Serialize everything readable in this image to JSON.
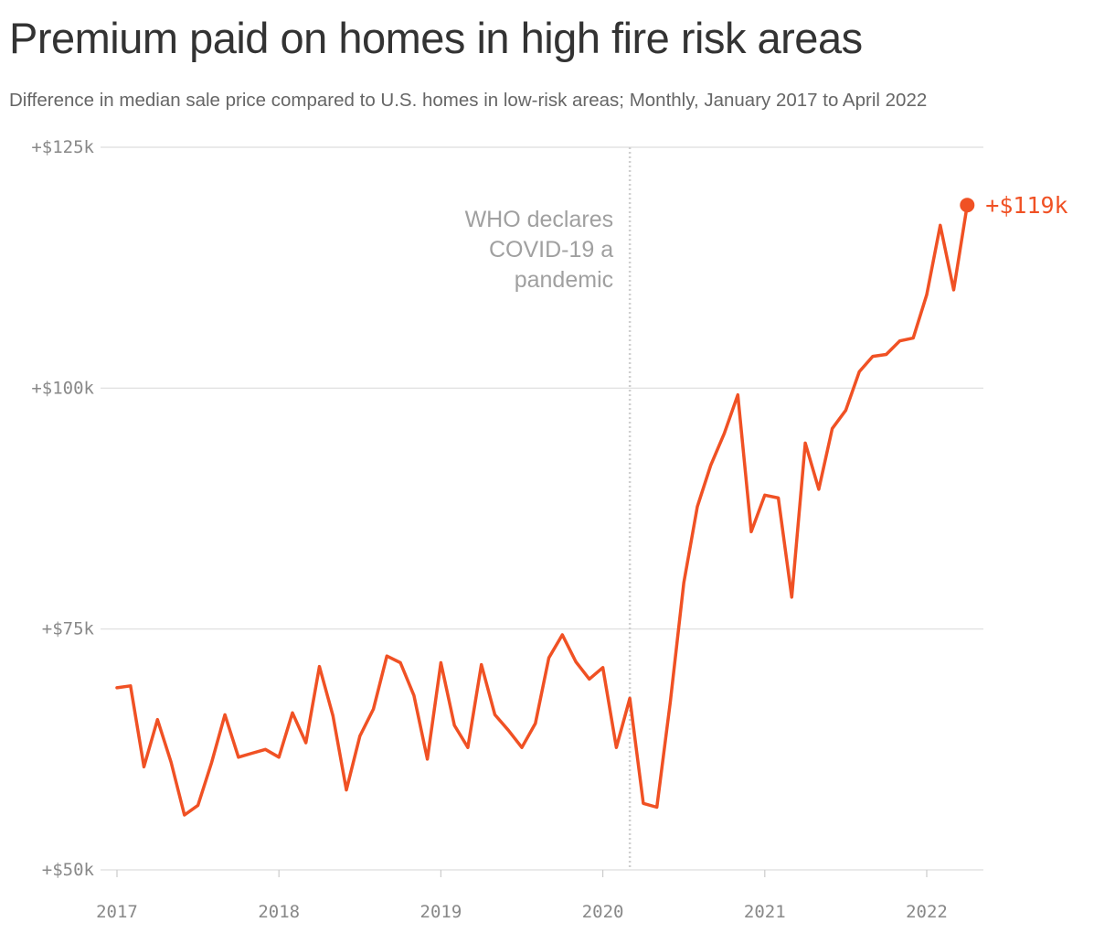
{
  "title": "Premium paid on homes in high fire risk areas",
  "subtitle": "Difference in median sale price compared to U.S. homes in low-risk areas; Monthly, January 2017 to April 2022",
  "colors": {
    "line": "#f05124",
    "grid": "#dddddd",
    "annotation": "#a0a0a0",
    "tick": "#888888"
  },
  "chart_data": {
    "type": "line",
    "title": "Premium paid on homes in high fire risk areas",
    "subtitle": "Difference in median sale price compared to U.S. homes in low-risk areas; Monthly, January 2017 to April 2022",
    "xlabel": "",
    "ylabel": "",
    "ylim": [
      50,
      125
    ],
    "xlim": [
      "2017-01",
      "2022-06"
    ],
    "grid": "horizontal",
    "yticks": [
      {
        "value": 50,
        "label": "+$50k"
      },
      {
        "value": 75,
        "label": "+$75k"
      },
      {
        "value": 100,
        "label": "+$100k"
      },
      {
        "value": 125,
        "label": "+$125k"
      }
    ],
    "xticks": [
      {
        "value": "2017-01",
        "label": "2017"
      },
      {
        "value": "2018-01",
        "label": "2018"
      },
      {
        "value": "2019-01",
        "label": "2019"
      },
      {
        "value": "2020-01",
        "label": "2020"
      },
      {
        "value": "2021-01",
        "label": "2021"
      },
      {
        "value": "2022-01",
        "label": "2022"
      }
    ],
    "series": [
      {
        "x": [
          "2017-01",
          "2017-02",
          "2017-03",
          "2017-04",
          "2017-05",
          "2017-06",
          "2017-07",
          "2017-08",
          "2017-09",
          "2017-10",
          "2017-11",
          "2017-12",
          "2018-01",
          "2018-02",
          "2018-03",
          "2018-04",
          "2018-05",
          "2018-06",
          "2018-07",
          "2018-08",
          "2018-09",
          "2018-10",
          "2018-11",
          "2018-12",
          "2019-01",
          "2019-02",
          "2019-03",
          "2019-04",
          "2019-05",
          "2019-06",
          "2019-07",
          "2019-08",
          "2019-09",
          "2019-10",
          "2019-11",
          "2019-12",
          "2020-01",
          "2020-02",
          "2020-03",
          "2020-04",
          "2020-05",
          "2020-06",
          "2020-07",
          "2020-08",
          "2020-09",
          "2020-10",
          "2020-11",
          "2020-12",
          "2021-01",
          "2021-02",
          "2021-03",
          "2021-04",
          "2021-05",
          "2021-06",
          "2021-07",
          "2021-08",
          "2021-09",
          "2021-10",
          "2021-11",
          "2021-12",
          "2022-01",
          "2022-02",
          "2022-03",
          "2022-04"
        ],
        "values": [
          68.9,
          69.1,
          60.7,
          65.6,
          61.2,
          55.7,
          56.7,
          61.1,
          66.1,
          61.7,
          62.1,
          62.5,
          61.7,
          66.3,
          63.2,
          71.1,
          66.0,
          58.3,
          63.9,
          66.7,
          72.2,
          71.5,
          68.1,
          61.5,
          71.5,
          65.0,
          62.7,
          71.3,
          66.1,
          64.5,
          62.7,
          65.2,
          72.0,
          74.4,
          71.6,
          69.8,
          71.0,
          62.7,
          67.8,
          56.9,
          56.5,
          67.4,
          79.8,
          87.7,
          92.0,
          95.3,
          99.3,
          85.1,
          88.9,
          88.6,
          78.3,
          94.3,
          89.5,
          95.8,
          97.7,
          101.7,
          103.3,
          103.5,
          104.9,
          105.2,
          109.7,
          116.9,
          110.2,
          119.0
        ]
      }
    ],
    "end_label": "+$119k",
    "annotation": {
      "x": "2020-03",
      "lines": [
        "WHO declares",
        "COVID-19 a",
        "pandemic"
      ]
    }
  }
}
